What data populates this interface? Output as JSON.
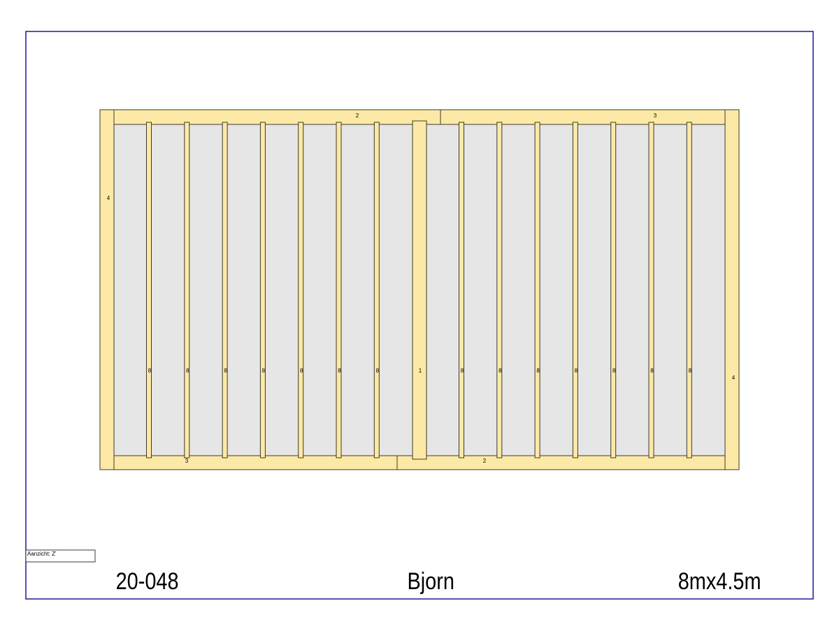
{
  "colors": {
    "frame": "#1a1a9a",
    "timber": "#fde9a6",
    "floor": "#e6e6e6",
    "outline": "#3a3a2a"
  },
  "beams": {
    "top_left": "2",
    "top_right": "3",
    "bottom_left": "3",
    "bottom_right": "2",
    "left_post": "4",
    "right_post": "4",
    "center_beam": "1"
  },
  "joists": {
    "label": "8",
    "left_count": 7,
    "right_count": 7
  },
  "view_label": "Aanzicht:  Z'",
  "title_block": {
    "number": "20-048",
    "name": "Bjorn",
    "size": "8mx4.5m"
  }
}
